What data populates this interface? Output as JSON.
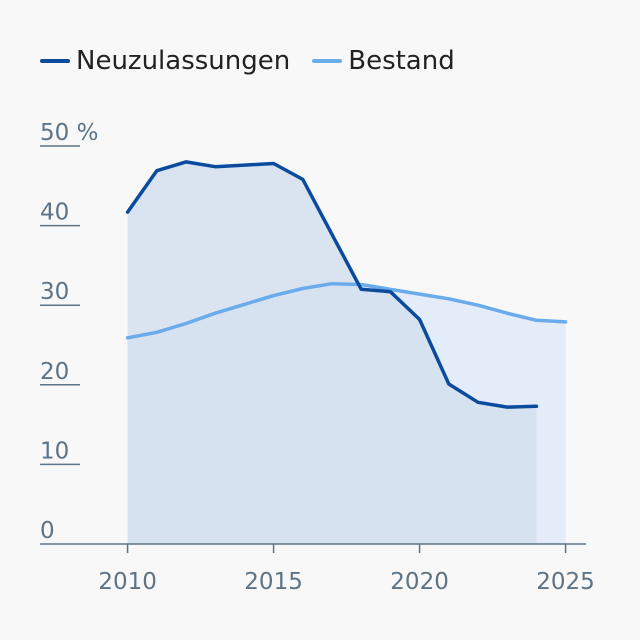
{
  "legend": {
    "items": [
      {
        "label": "Neuzulassungen",
        "color": "#0b4b9e"
      },
      {
        "label": "Bestand",
        "color": "#6aaceb"
      }
    ]
  },
  "chart_data": {
    "type": "area",
    "title": "",
    "xlabel": "",
    "ylabel": "",
    "xlim": [
      2007,
      2025.7
    ],
    "ylim": [
      0,
      50
    ],
    "x_ticks": [
      "2010",
      "2015",
      "2020",
      "2025"
    ],
    "y_ticks": [
      "0",
      "10",
      "20",
      "30",
      "40",
      "50 %"
    ],
    "grid": false,
    "legend_position": "top-left",
    "series": [
      {
        "name": "Neuzulassungen",
        "color": "#0b4b9e",
        "fill": "#d5e0ef",
        "x": [
          2010,
          2011,
          2012,
          2013,
          2014,
          2015,
          2016,
          2017,
          2018,
          2019,
          2020,
          2021,
          2022,
          2023,
          2024
        ],
        "y": [
          41.7,
          46.9,
          48.0,
          47.4,
          47.6,
          47.8,
          45.8,
          38.9,
          32.0,
          31.7,
          28.2,
          20.1,
          17.8,
          17.2,
          17.3
        ]
      },
      {
        "name": "Bestand",
        "color": "#6aaceb",
        "fill": "#e3ecf8",
        "x": [
          2010,
          2011,
          2012,
          2013,
          2014,
          2015,
          2016,
          2017,
          2018,
          2019,
          2020,
          2021,
          2022,
          2023,
          2024,
          2025
        ],
        "y": [
          25.9,
          26.6,
          27.7,
          29.0,
          30.1,
          31.2,
          32.1,
          32.7,
          32.6,
          32.0,
          31.4,
          30.8,
          30.0,
          29.0,
          28.1,
          27.9
        ]
      }
    ]
  }
}
